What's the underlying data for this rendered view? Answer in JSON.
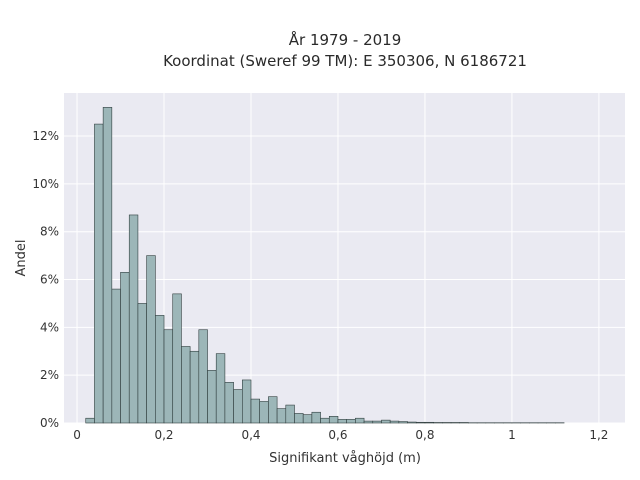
{
  "chart_data": {
    "type": "bar",
    "title_lines": [
      "År 1979 - 2019",
      "Koordinat (Sweref 99 TM): E 350306, N 6186721"
    ],
    "xlabel": "Signifikant våghöjd (m)",
    "ylabel": "Andel",
    "xlim": [
      -0.03,
      1.26
    ],
    "ylim": [
      0,
      13.8
    ],
    "x_ticks": [
      0,
      0.2,
      0.4,
      0.6,
      0.8,
      1.0,
      1.2
    ],
    "x_tick_labels": [
      "0",
      "0,2",
      "0,4",
      "0,6",
      "0,8",
      "1",
      "1,2"
    ],
    "y_ticks": [
      0,
      2,
      4,
      6,
      8,
      10,
      12
    ],
    "y_tick_labels": [
      "0%",
      "2%",
      "4%",
      "6%",
      "8%",
      "10%",
      "12%"
    ],
    "bin_width": 0.02,
    "bins_start": [
      0.02,
      0.04,
      0.06,
      0.08,
      0.1,
      0.12,
      0.14,
      0.16,
      0.18,
      0.2,
      0.22,
      0.24,
      0.26,
      0.28,
      0.3,
      0.32,
      0.34,
      0.36,
      0.38,
      0.4,
      0.42,
      0.44,
      0.46,
      0.48,
      0.5,
      0.52,
      0.54,
      0.56,
      0.58,
      0.6,
      0.62,
      0.64,
      0.66,
      0.68,
      0.7,
      0.72,
      0.74,
      0.76,
      0.78,
      0.8,
      0.82,
      0.84,
      0.86,
      0.88,
      0.9,
      0.92,
      0.94,
      0.96,
      0.98,
      1.0,
      1.02,
      1.04,
      1.06,
      1.08,
      1.1
    ],
    "values": [
      0.2,
      12.5,
      13.2,
      5.6,
      6.3,
      8.7,
      5.0,
      7.0,
      4.5,
      3.9,
      5.4,
      3.2,
      3.0,
      3.9,
      2.2,
      2.9,
      1.7,
      1.4,
      1.8,
      1.0,
      0.9,
      1.1,
      0.6,
      0.75,
      0.4,
      0.35,
      0.45,
      0.2,
      0.28,
      0.15,
      0.15,
      0.2,
      0.08,
      0.08,
      0.12,
      0.08,
      0.06,
      0.04,
      0.03,
      0.03,
      0.02,
      0.02,
      0.02,
      0.02,
      0.01,
      0.01,
      0.01,
      0.01,
      0.01,
      0.01,
      0.01,
      0.01,
      0.01,
      0.01,
      0.01
    ],
    "grid": true,
    "colors": {
      "bar_fill": "#9cb6b8",
      "bar_edge": "#2f3d3d",
      "plot_bg": "#eaeaf2",
      "grid": "#ffffff"
    }
  }
}
